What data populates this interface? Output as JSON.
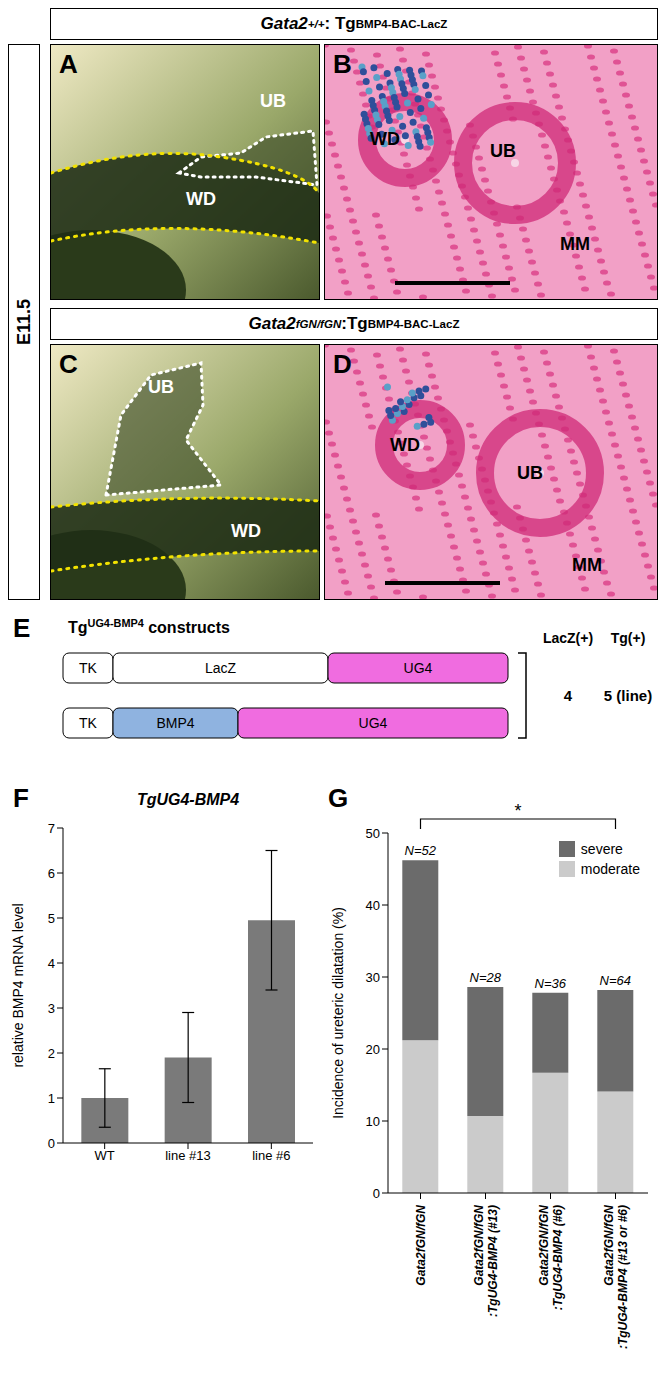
{
  "figure": {
    "stage": "E11.5",
    "rows": [
      {
        "header": [
          {
            "text": "Gata2",
            "italic": true
          },
          {
            "text": "+/+",
            "italic": true,
            "sup": true
          },
          {
            "text": ": Tg"
          },
          {
            "text": "BMP4-BAC-LacZ",
            "sup": true
          }
        ],
        "panels": [
          {
            "letter": "A",
            "labels": [
              "UB",
              "WD"
            ]
          },
          {
            "letter": "B",
            "labels": [
              "WD",
              "UB",
              "MM"
            ]
          }
        ]
      },
      {
        "header": [
          {
            "text": "Gata2",
            "italic": true
          },
          {
            "text": "fGN/fGN",
            "italic": true,
            "sup": true
          },
          {
            "text": ":Tg"
          },
          {
            "text": "BMP4-BAC-LacZ",
            "sup": true
          }
        ],
        "panels": [
          {
            "letter": "C",
            "labels": [
              "UB",
              "WD"
            ]
          },
          {
            "letter": "D",
            "labels": [
              "WD",
              "UB",
              "MM"
            ]
          }
        ]
      }
    ],
    "construct_panel": {
      "letter": "E",
      "title": [
        {
          "text": "Tg"
        },
        {
          "text": "UG4-BMP4",
          "sup": true
        },
        {
          "text": " constructs"
        }
      ],
      "constructs": [
        [
          "TK",
          "LacZ",
          "UG4"
        ],
        [
          "TK",
          "BMP4",
          "UG4"
        ]
      ],
      "columns": [
        "LacZ(+)",
        "Tg(+)"
      ],
      "counts": [
        "4",
        "5 (line)"
      ]
    },
    "chart_letters": [
      "F",
      "G"
    ]
  },
  "chart_data": [
    {
      "type": "bar",
      "title": "TgUG4-BMP4",
      "y_label": "relative BMP4 mRNA level",
      "categories": [
        "WT",
        "line #13",
        "line #6"
      ],
      "values": [
        1,
        1.9,
        4.95
      ],
      "error": [
        0.65,
        1.0,
        1.55
      ],
      "color": "#7a7a7a",
      "ylim": [
        0,
        7
      ],
      "yticks": [
        0,
        1,
        2,
        3,
        4,
        5,
        6,
        7
      ],
      "grid": false
    },
    {
      "type": "bar",
      "stacked": true,
      "y_label": "Incidence of ureteric dilatation (%)",
      "categories": [
        "Gata2fGN/fGN",
        "Gata2fGN/fGN:TgUG4-BMP4 (#13)",
        "Gata2fGN/fGN:TgUG4-BMP4 (#6)",
        "Gata2fGN/fGN:TgUG4-BMP4 (#13 or #6)"
      ],
      "series": [
        {
          "name": "moderate",
          "color": "#cbcbcb",
          "values": [
            21.2,
            10.7,
            16.7,
            14.1
          ]
        },
        {
          "name": "severe",
          "color": "#6b6b6b",
          "values": [
            25.0,
            17.9,
            11.1,
            14.1
          ]
        }
      ],
      "n_labels": [
        "N=52",
        "N=28",
        "N=36",
        "N=64"
      ],
      "significance": {
        "text": "*",
        "between": [
          0,
          3
        ]
      },
      "ylim": [
        0,
        50
      ],
      "yticks": [
        0,
        10,
        20,
        30,
        40,
        50
      ],
      "legend": "top-right",
      "grid": false
    }
  ]
}
